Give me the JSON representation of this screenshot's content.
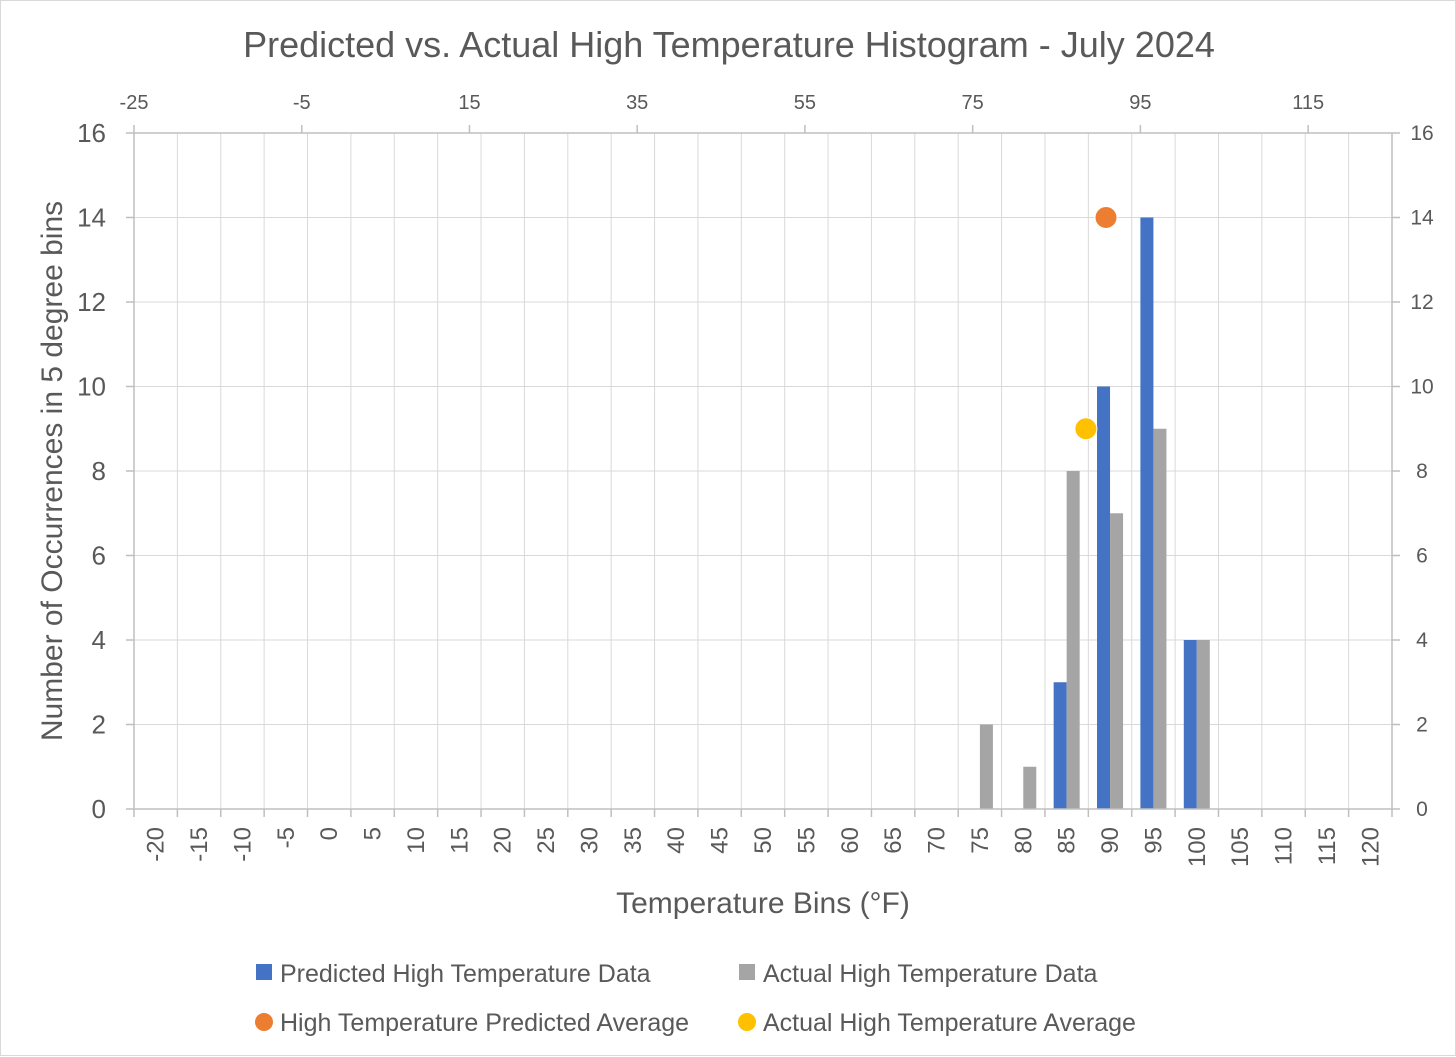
{
  "chart_data": {
    "type": "bar",
    "title": "Predicted vs. Actual High Temperature Histogram - July 2024",
    "xlabel": "Temperature Bins (°F)",
    "ylabel": "Number of Occurrences in 5 degree bins",
    "categories": [
      "-20",
      "-15",
      "-10",
      "-5",
      "0",
      "5",
      "10",
      "15",
      "20",
      "25",
      "30",
      "35",
      "40",
      "45",
      "50",
      "55",
      "60",
      "65",
      "70",
      "75",
      "80",
      "85",
      "90",
      "95",
      "100",
      "105",
      "110",
      "115",
      "120"
    ],
    "series": [
      {
        "name": "Predicted High Temperature Data",
        "color": "#4472c4",
        "values": [
          0,
          0,
          0,
          0,
          0,
          0,
          0,
          0,
          0,
          0,
          0,
          0,
          0,
          0,
          0,
          0,
          0,
          0,
          0,
          0,
          0,
          3,
          10,
          14,
          4,
          0,
          0,
          0,
          0
        ]
      },
      {
        "name": "Actual High Temperature Data",
        "color": "#a5a5a5",
        "values": [
          0,
          0,
          0,
          0,
          0,
          0,
          0,
          0,
          0,
          0,
          0,
          0,
          0,
          0,
          0,
          0,
          0,
          0,
          0,
          2,
          1,
          8,
          7,
          9,
          4,
          0,
          0,
          0,
          0
        ]
      }
    ],
    "scatter_series": [
      {
        "name": "High Temperature Predicted Average",
        "color": "#ed7d31",
        "x": 90.9,
        "y": 14
      },
      {
        "name": "Actual High Temperature Average",
        "color": "#ffc000",
        "x": 88.5,
        "y": 9
      }
    ],
    "ylim": [
      0,
      16
    ],
    "yticks": [
      "0",
      "2",
      "4",
      "6",
      "8",
      "10",
      "12",
      "14",
      "16"
    ],
    "secondary_xlim": [
      -25,
      125
    ],
    "secondary_xticks": [
      "-25",
      "-5",
      "15",
      "35",
      "55",
      "75",
      "95",
      "115"
    ],
    "grid": true,
    "legend_position": "bottom"
  }
}
